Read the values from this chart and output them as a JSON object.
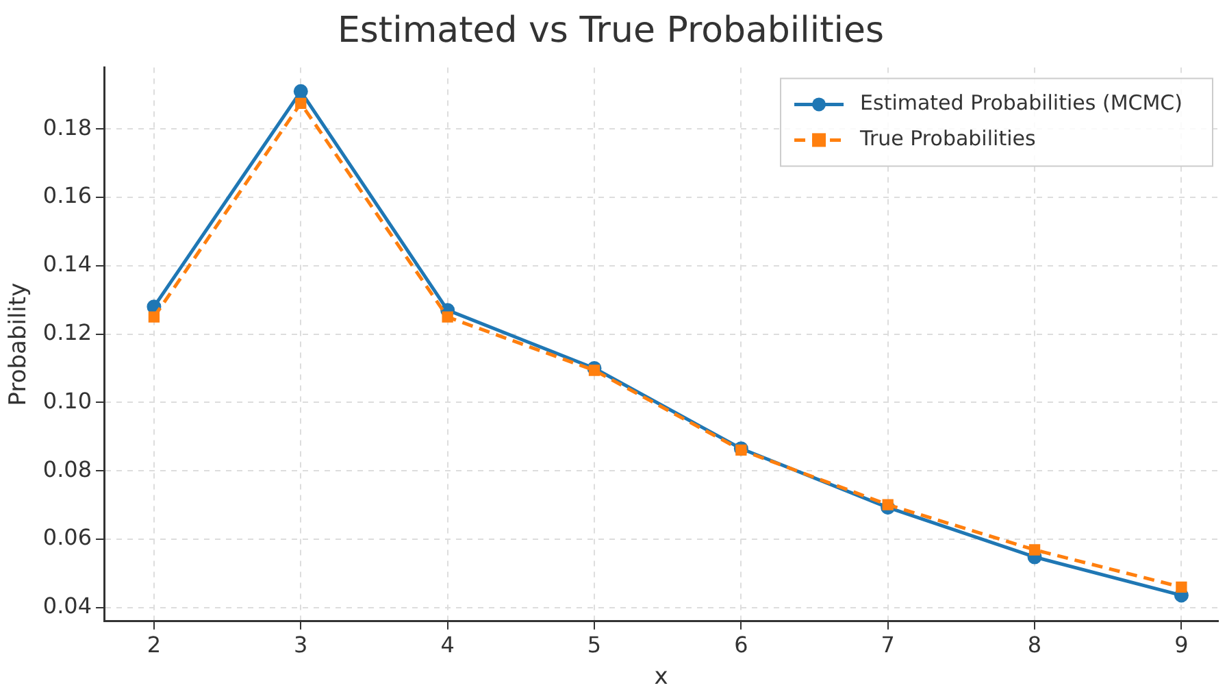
{
  "chart_data": {
    "type": "line",
    "title": "Estimated vs True Probabilities",
    "xlabel": "x",
    "ylabel": "Probability",
    "x": [
      2,
      3,
      4,
      5,
      6,
      7,
      8,
      9
    ],
    "series": [
      {
        "name": "Estimated Probabilities (MCMC)",
        "color": "#1f77b4",
        "values": [
          0.128,
          0.191,
          0.127,
          0.11,
          0.0865,
          0.0693,
          0.0548,
          0.0436
        ],
        "marker": "circle",
        "line_style": "solid"
      },
      {
        "name": "True Probabilities",
        "color": "#ff7f0e",
        "values": [
          0.125,
          0.1875,
          0.125,
          0.1094,
          0.0861,
          0.0701,
          0.0569,
          0.046
        ],
        "marker": "square",
        "line_style": "dashed"
      }
    ],
    "xlim": [
      1.66,
      9.25
    ],
    "xticks": [
      2,
      3,
      4,
      5,
      6,
      7,
      8,
      9
    ],
    "ylim": [
      0.036,
      0.198
    ],
    "yticks": [
      0.04,
      0.06,
      0.08,
      {
        "value": 0.1,
        "label": "0.10"
      },
      0.12,
      0.14,
      0.16,
      0.18
    ],
    "grid": true,
    "legend": "top right"
  }
}
